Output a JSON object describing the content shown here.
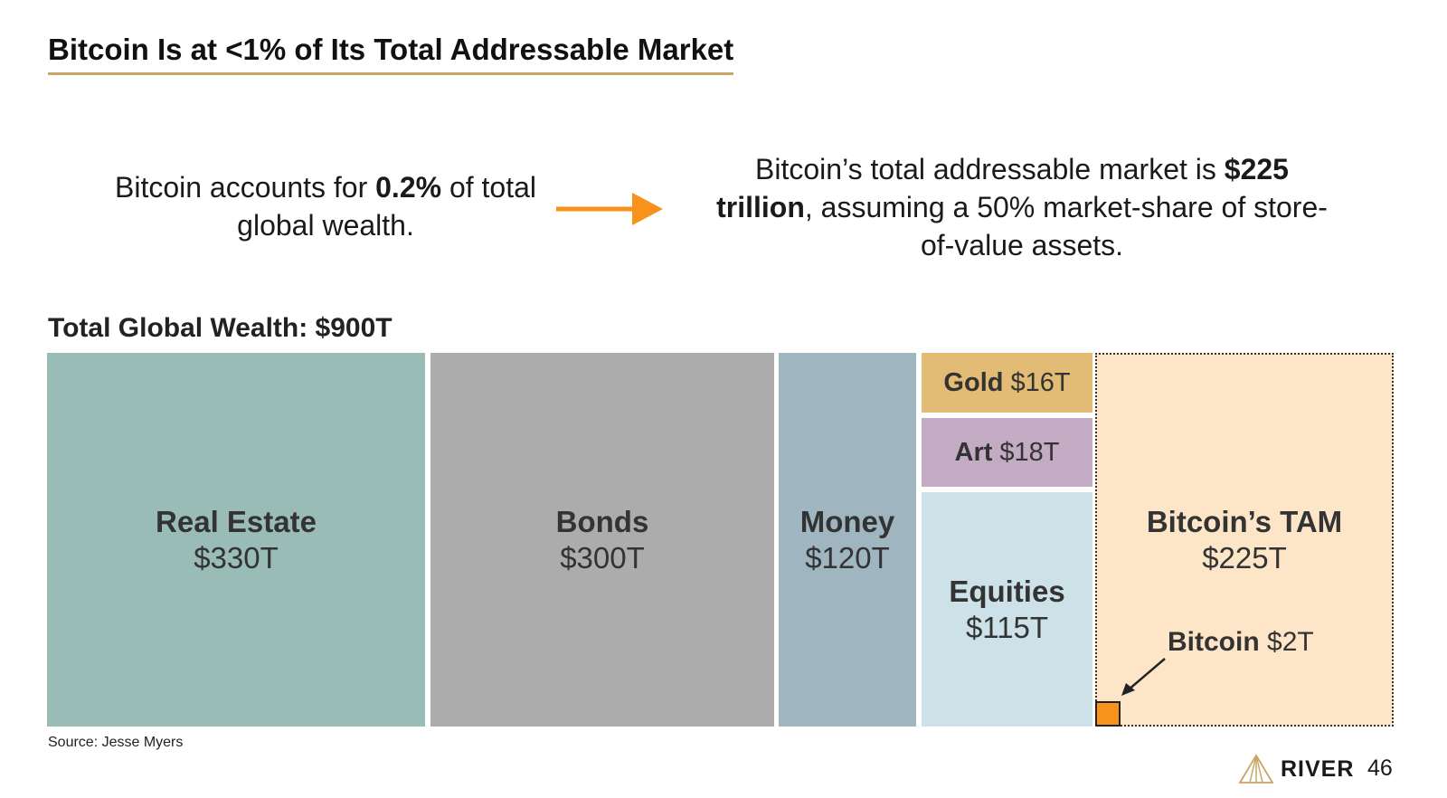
{
  "title": "Bitcoin Is at <1% of Its Total Addressable Market",
  "left_callout": {
    "pre": "Bitcoin accounts for ",
    "bold": "0.2%",
    "post": " of total global wealth."
  },
  "right_callout": {
    "pre": "Bitcoin’s total addressable market is ",
    "bold": "$225 trillion",
    "post": ", assuming a 50% market-share of store-of-value assets."
  },
  "colors": {
    "title_underline": "#c9a566",
    "arrow": "#f7931a",
    "real_estate": "#99bdb6",
    "bonds": "#acacac",
    "money": "#9fb6c1",
    "gold": "#e2bb75",
    "art": "#c3acc3",
    "equities": "#cce2e8",
    "tam": "#fde6c8",
    "bitcoin": "#f7931a"
  },
  "chart_data": {
    "type": "treemap",
    "title": "Total Global Wealth: $900T",
    "unit": "trillion USD",
    "items": [
      {
        "name": "Real Estate",
        "label": "$330T",
        "value": 330
      },
      {
        "name": "Bonds",
        "label": "$300T",
        "value": 300
      },
      {
        "name": "Money",
        "label": "$120T",
        "value": 120
      },
      {
        "name": "Gold",
        "label": "$16T",
        "value": 16
      },
      {
        "name": "Art",
        "label": "$18T",
        "value": 18
      },
      {
        "name": "Equities",
        "label": "$115T",
        "value": 115
      }
    ],
    "tam": {
      "name": "Bitcoin’s TAM",
      "label": "$225T",
      "value": 225
    },
    "bitcoin": {
      "name": "Bitcoin",
      "label": "$2T",
      "value": 2
    }
  },
  "source": "Source: Jesse Myers",
  "logo": {
    "text": "RIVER"
  },
  "page_number": "46"
}
